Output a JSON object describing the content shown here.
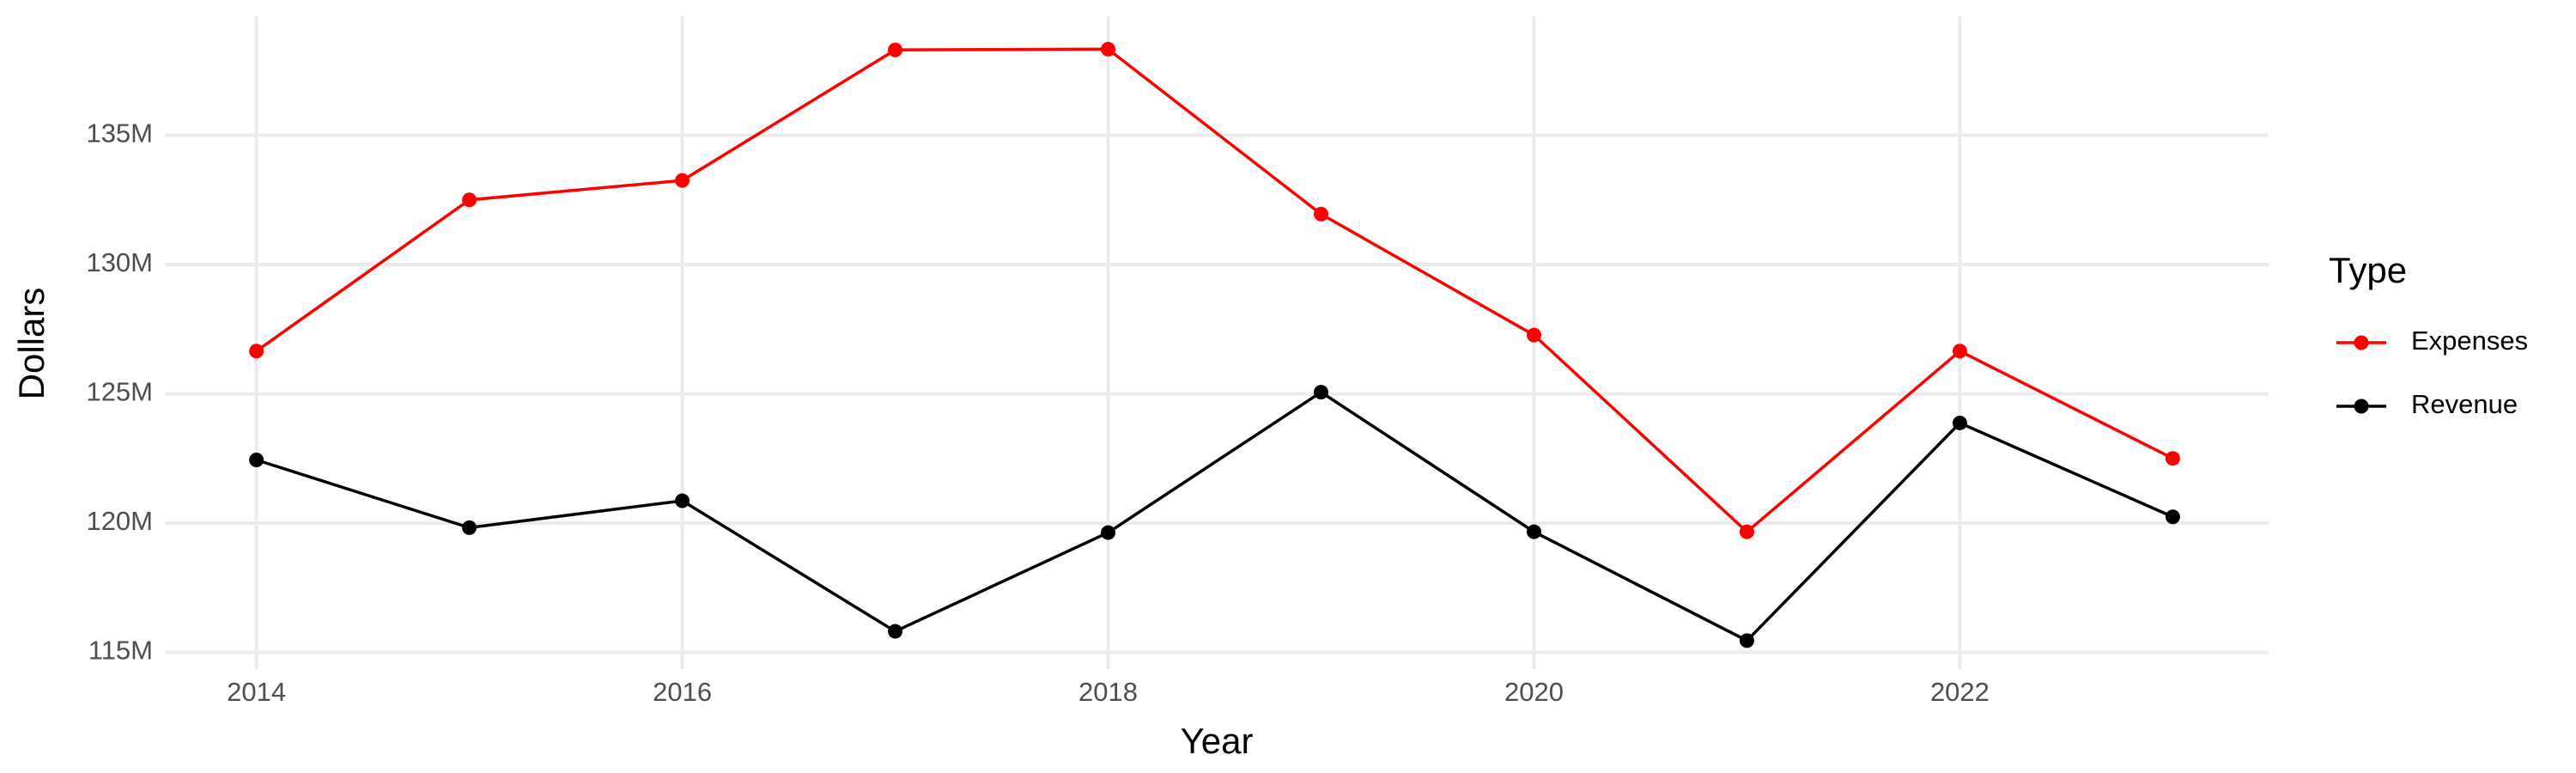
{
  "chart_data": {
    "type": "line",
    "x_label": "Year",
    "y_label": "Dollars",
    "legend_title": "Type",
    "legend": "right",
    "grid": true,
    "x": [
      2014,
      2015,
      2016,
      2017,
      2018,
      2019,
      2020,
      2021,
      2022,
      2023
    ],
    "series": [
      {
        "name": "Expenses",
        "color": "#ff0000",
        "values": [
          126650000,
          132500000,
          133250000,
          138300000,
          138330000,
          131950000,
          127270000,
          119660000,
          126650000,
          122500000
        ]
      },
      {
        "name": "Revenue",
        "color": "#000000",
        "values": [
          122440000,
          119820000,
          120860000,
          115810000,
          119630000,
          125060000,
          119660000,
          115450000,
          123870000,
          120240000
        ]
      }
    ],
    "xlim": [
      2013.57,
      2023.45
    ],
    "xticks": [
      2014,
      2016,
      2018,
      2020,
      2022
    ],
    "ylim": [
      114350000,
      139600000
    ],
    "yticks": [
      {
        "value": 115000000,
        "label": "115M"
      },
      {
        "value": 120000000,
        "label": "120M"
      },
      {
        "value": 125000000,
        "label": "125M"
      },
      {
        "value": 130000000,
        "label": "130M"
      },
      {
        "value": 135000000,
        "label": "135M"
      }
    ]
  }
}
